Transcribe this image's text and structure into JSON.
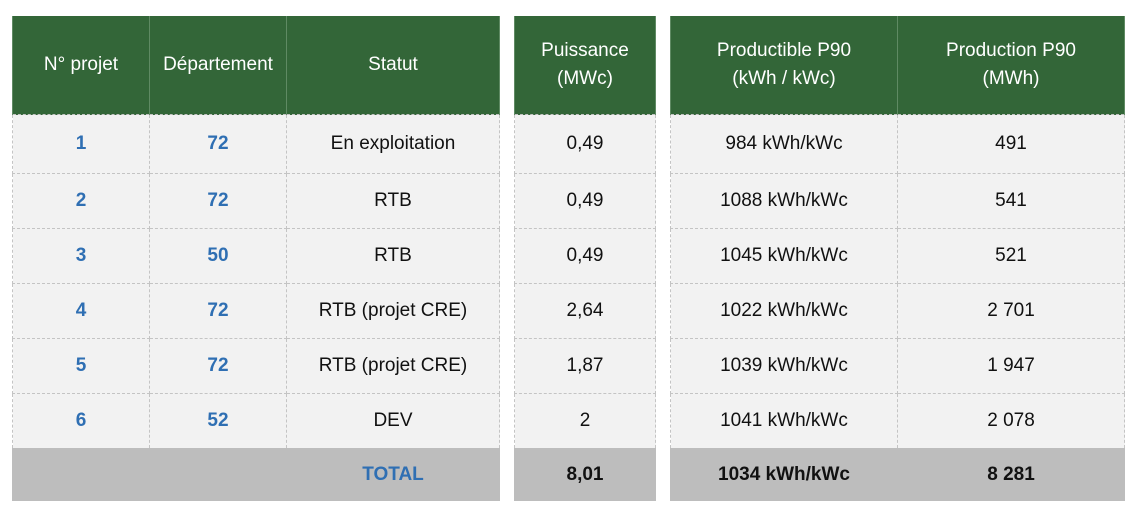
{
  "headers": {
    "projet": "N° projet",
    "departement": "Département",
    "statut": "Statut",
    "puissance_1": "Puissance",
    "puissance_2": "(MWc)",
    "productible_1": "Productible P90",
    "productible_2": "(kWh / kWc)",
    "production_1": "Production P90",
    "production_2": "(MWh)"
  },
  "rows": [
    {
      "projet": "1",
      "departement": "72",
      "statut": "En exploitation",
      "puissance": "0,49",
      "productible": "984 kWh/kWc",
      "production": "491"
    },
    {
      "projet": "2",
      "departement": "72",
      "statut": "RTB",
      "puissance": "0,49",
      "productible": "1088 kWh/kWc",
      "production": "541"
    },
    {
      "projet": "3",
      "departement": "50",
      "statut": "RTB",
      "puissance": "0,49",
      "productible": "1045 kWh/kWc",
      "production": "521"
    },
    {
      "projet": "4",
      "departement": "72",
      "statut": "RTB (projet CRE)",
      "puissance": "2,64",
      "productible": "1022 kWh/kWc",
      "production": "2 701"
    },
    {
      "projet": "5",
      "departement": "72",
      "statut": "RTB (projet CRE)",
      "puissance": "1,87",
      "productible": "1039 kWh/kWc",
      "production": "1 947"
    },
    {
      "projet": "6",
      "departement": "52",
      "statut": "DEV",
      "puissance": "2",
      "productible": "1041 kWh/kWc",
      "production": "2 078"
    }
  ],
  "total": {
    "label": "TOTAL",
    "puissance": "8,01",
    "productible": "1034 kWh/kWc",
    "production": "8 281"
  },
  "colors": {
    "header_green": "#336638",
    "id_blue": "#2f6fb3",
    "row_bg": "#f2f2f2",
    "total_bg": "#bdbdbd"
  }
}
